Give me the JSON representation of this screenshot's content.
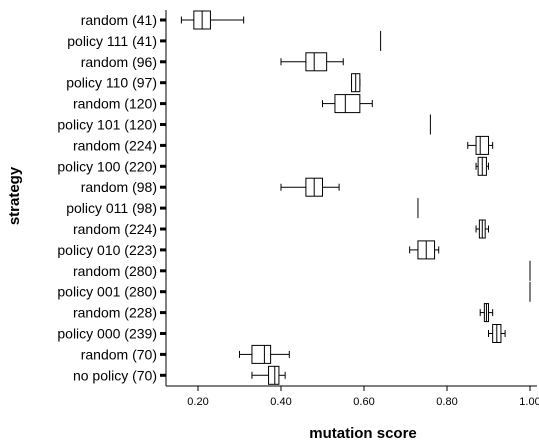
{
  "chart_data": {
    "type": "boxplot",
    "orientation": "horizontal",
    "title": "",
    "xlabel": "mutation score",
    "ylabel": "strategy",
    "xlim": [
      0.14,
      1.0
    ],
    "xticks": [
      "0.20",
      "0.40",
      "0.60",
      "0.80",
      "1.00"
    ],
    "categories": [
      "random (41)",
      "policy 111 (41)",
      "random (96)",
      "policy 110 (97)",
      "random (120)",
      "policy 101 (120)",
      "random (224)",
      "policy 100 (220)",
      "random (98)",
      "policy 011 (98)",
      "random  (224)",
      "policy 010 (223)",
      "random (280)",
      "policy 001 (280)",
      "random (228)",
      "policy 000 (239)",
      "random (70)",
      "no policy (70)"
    ],
    "boxes": [
      {
        "min": 0.16,
        "q1": 0.19,
        "median": 0.21,
        "q3": 0.23,
        "max": 0.31
      },
      {
        "min": 0.64,
        "q1": 0.64,
        "median": 0.64,
        "q3": 0.64,
        "max": 0.64
      },
      {
        "min": 0.4,
        "q1": 0.46,
        "median": 0.48,
        "q3": 0.51,
        "max": 0.55
      },
      {
        "min": 0.57,
        "q1": 0.57,
        "median": 0.58,
        "q3": 0.59,
        "max": 0.59
      },
      {
        "min": 0.5,
        "q1": 0.53,
        "median": 0.555,
        "q3": 0.59,
        "max": 0.62
      },
      {
        "min": 0.76,
        "q1": 0.76,
        "median": 0.76,
        "q3": 0.76,
        "max": 0.76
      },
      {
        "min": 0.85,
        "q1": 0.87,
        "median": 0.88,
        "q3": 0.9,
        "max": 0.91
      },
      {
        "min": 0.87,
        "q1": 0.875,
        "median": 0.885,
        "q3": 0.895,
        "max": 0.9
      },
      {
        "min": 0.4,
        "q1": 0.46,
        "median": 0.48,
        "q3": 0.5,
        "max": 0.54
      },
      {
        "min": 0.73,
        "q1": 0.73,
        "median": 0.73,
        "q3": 0.73,
        "max": 0.73
      },
      {
        "min": 0.87,
        "q1": 0.878,
        "median": 0.885,
        "q3": 0.892,
        "max": 0.9
      },
      {
        "min": 0.71,
        "q1": 0.73,
        "median": 0.75,
        "q3": 0.77,
        "max": 0.78
      },
      {
        "min": 1.0,
        "q1": 1.0,
        "median": 1.0,
        "q3": 1.0,
        "max": 1.0
      },
      {
        "min": 1.0,
        "q1": 1.0,
        "median": 1.0,
        "q3": 1.0,
        "max": 1.0
      },
      {
        "min": 0.88,
        "q1": 0.89,
        "median": 0.895,
        "q3": 0.9,
        "max": 0.91
      },
      {
        "min": 0.9,
        "q1": 0.91,
        "median": 0.92,
        "q3": 0.93,
        "max": 0.94
      },
      {
        "min": 0.3,
        "q1": 0.33,
        "median": 0.36,
        "q3": 0.375,
        "max": 0.42
      },
      {
        "min": 0.33,
        "q1": 0.37,
        "median": 0.385,
        "q3": 0.395,
        "max": 0.41
      }
    ],
    "grid": false,
    "legend": "none",
    "colors": {
      "box_fill": "#ffffff",
      "stroke": "#000000"
    }
  }
}
